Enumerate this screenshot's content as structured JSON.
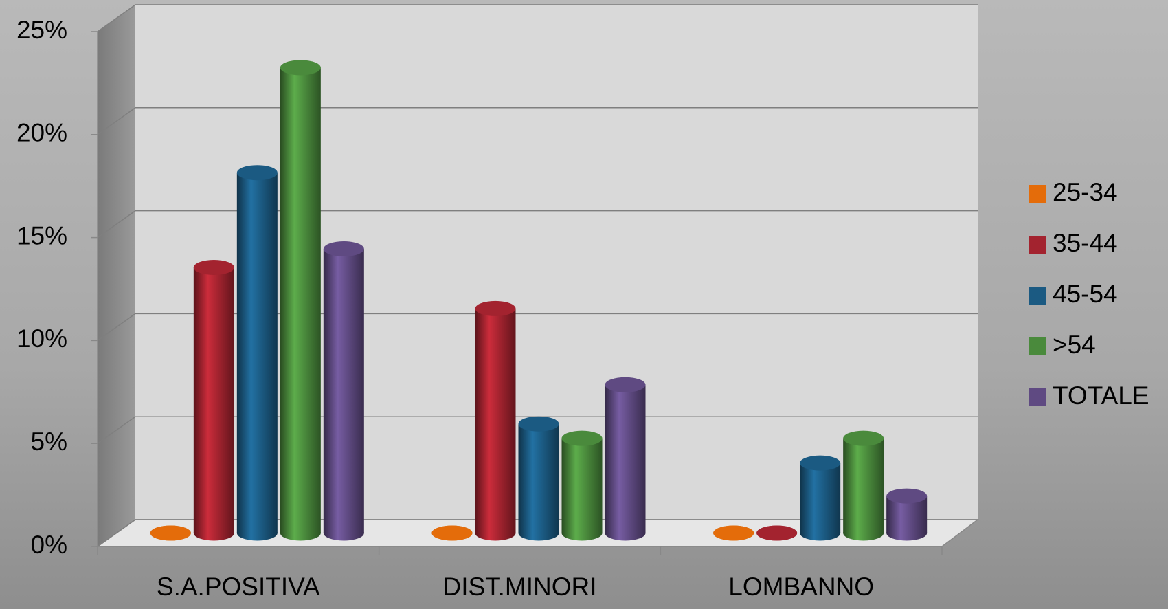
{
  "chart_data": {
    "type": "bar3d",
    "categories": [
      "S.A.POSITIVA",
      "DIST.MINORI",
      "LOMBANNO"
    ],
    "series": [
      {
        "name": "25-34",
        "color": "#e46c0a",
        "values": [
          0,
          0,
          0
        ]
      },
      {
        "name": "35-44",
        "color": "#a3232f",
        "values": [
          12.9,
          10.9,
          0
        ]
      },
      {
        "name": "45-54",
        "color": "#1b5a82",
        "values": [
          17.5,
          5.3,
          3.4
        ]
      },
      {
        "name": ">54",
        "color": "#4a8a3c",
        "values": [
          22.6,
          4.6,
          4.6
        ]
      },
      {
        "name": "TOTALE",
        "color": "#5f4a82",
        "values": [
          13.8,
          7.2,
          1.8
        ]
      }
    ],
    "ylim": [
      0,
      25
    ],
    "yticks": [
      {
        "value": 0,
        "label": "0%"
      },
      {
        "value": 5,
        "label": "5%"
      },
      {
        "value": 10,
        "label": "10%"
      },
      {
        "value": 15,
        "label": "15%"
      },
      {
        "value": 20,
        "label": "20%"
      },
      {
        "value": 25,
        "label": "25%"
      }
    ],
    "grid": true,
    "legend": "right"
  }
}
